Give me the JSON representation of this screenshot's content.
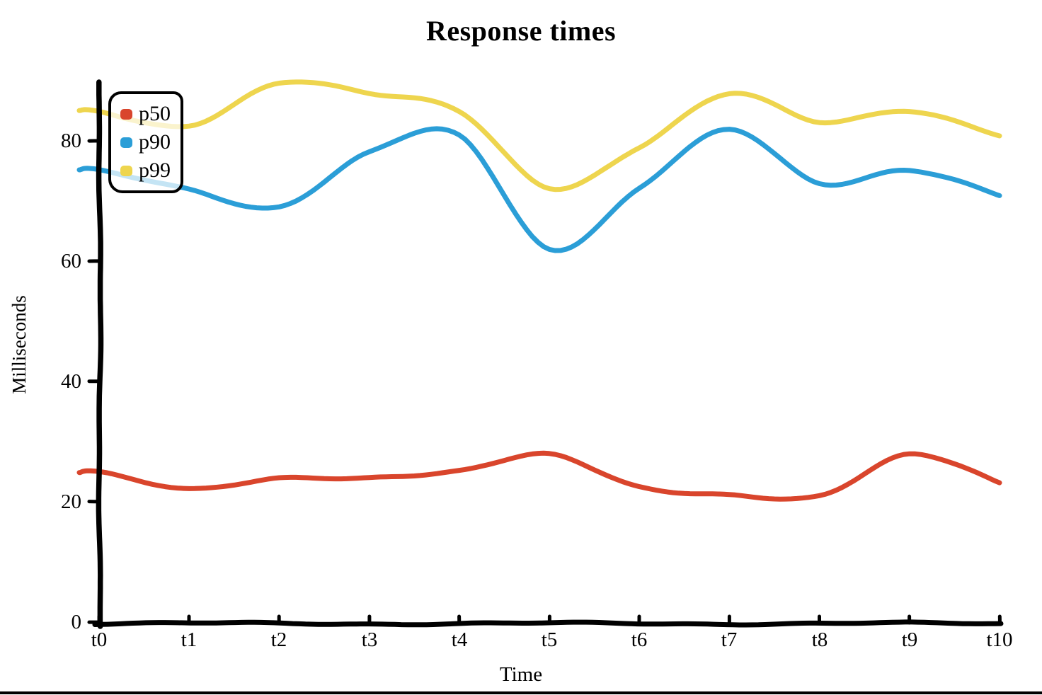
{
  "chart_data": {
    "type": "line",
    "title": "Response times",
    "xlabel": "Time",
    "ylabel": "Milliseconds",
    "style": "hand-drawn sketch lines, no grid",
    "grid": false,
    "legend_position": "upper-left",
    "axis_color": "#000000",
    "background_color": "#ffffff",
    "categories": [
      "t0",
      "t1",
      "t2",
      "t3",
      "t4",
      "t5",
      "t6",
      "t7",
      "t8",
      "t9",
      "t10"
    ],
    "x_tick_labels": [
      "t0",
      "t1",
      "t2",
      "t3",
      "t4",
      "t5",
      "t6",
      "t7",
      "t8",
      "t9",
      "t10"
    ],
    "y_tick_labels": [
      "0",
      "20",
      "40",
      "60",
      "80"
    ],
    "y_tick_values": [
      0,
      20,
      40,
      60,
      80
    ],
    "ylim": [
      0,
      93
    ],
    "series": [
      {
        "name": "p50",
        "color": "#d9452c",
        "values": [
          25,
          22,
          24,
          24,
          25,
          28,
          22.5,
          21,
          21,
          28,
          23
        ]
      },
      {
        "name": "p90",
        "color": "#2b9ed7",
        "values": [
          75,
          72,
          69,
          78,
          81,
          62,
          72,
          82,
          73,
          75,
          71
        ]
      },
      {
        "name": "p99",
        "color": "#eed54e",
        "values": [
          85,
          82.5,
          89.5,
          88,
          85,
          72,
          79,
          88,
          83,
          85,
          81
        ]
      }
    ]
  }
}
